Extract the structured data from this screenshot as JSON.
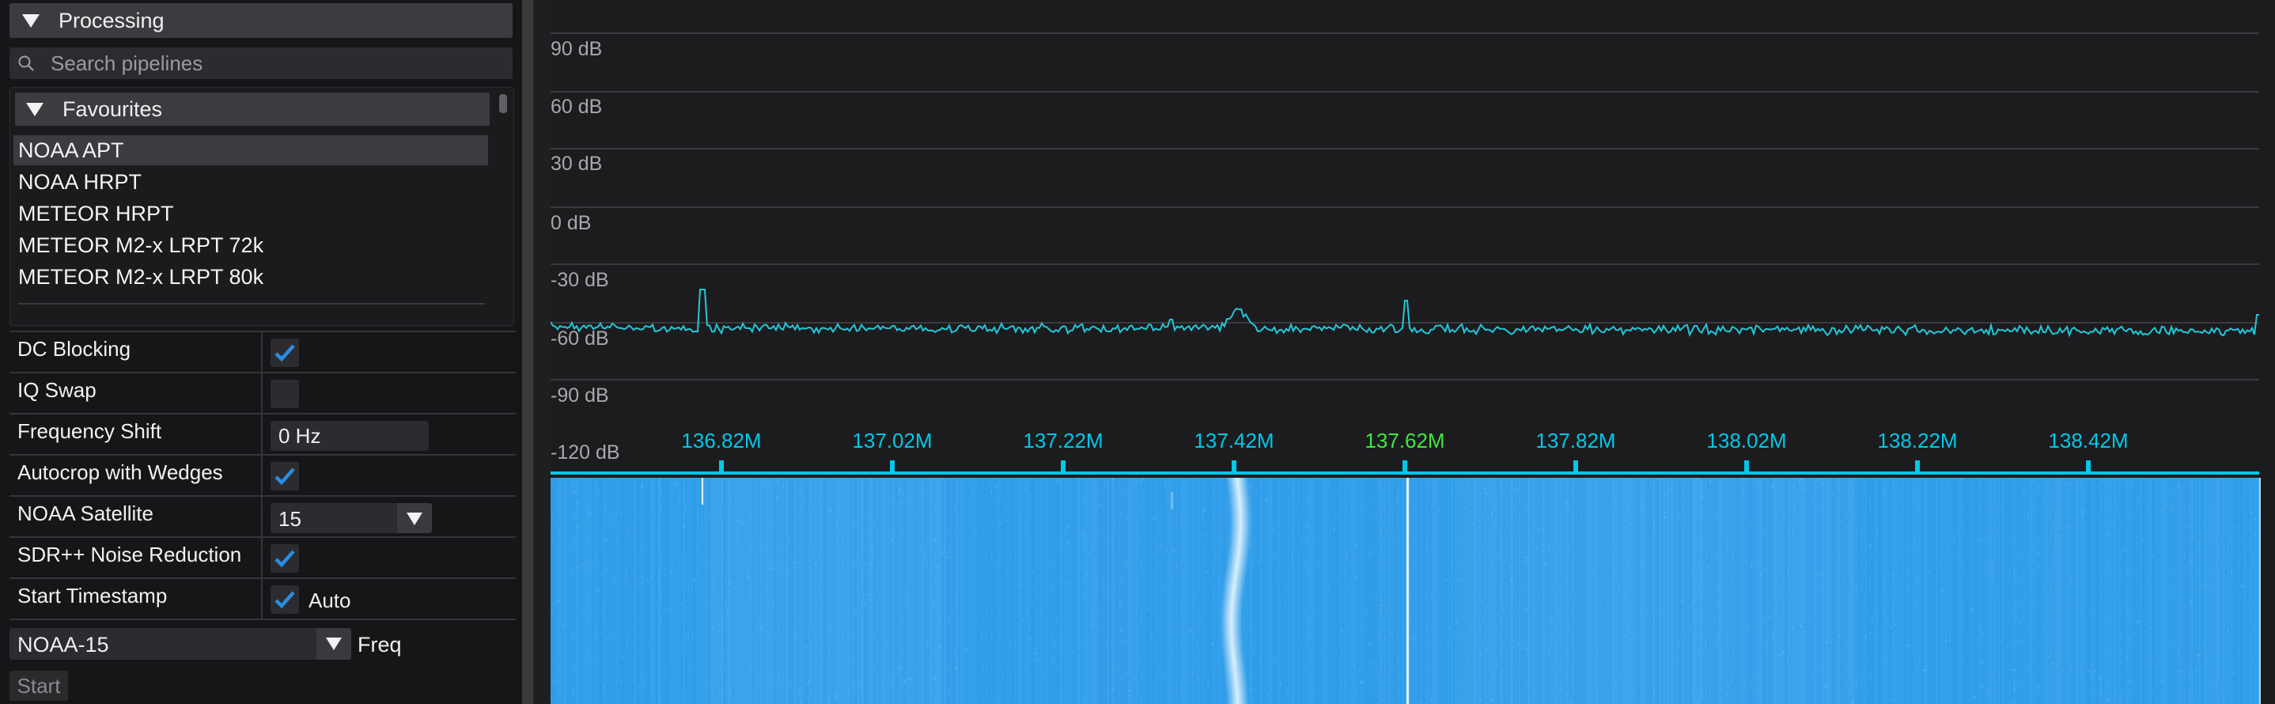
{
  "processing": {
    "header_title": "Processing",
    "search_placeholder": "Search pipelines",
    "favourites_title": "Favourites",
    "pipelines": [
      "NOAA APT",
      "NOAA HRPT",
      "METEOR HRPT",
      "METEOR M2-x LRPT 72k",
      "METEOR M2-x LRPT 80k"
    ],
    "selected_pipeline": "NOAA APT"
  },
  "settings": {
    "dc_blocking": {
      "label": "DC Blocking",
      "checked": true
    },
    "iq_swap": {
      "label": "IQ Swap",
      "checked": false
    },
    "frequency_shift": {
      "label": "Frequency Shift",
      "value": "0 Hz"
    },
    "autocrop": {
      "label": "Autocrop with Wedges",
      "checked": true
    },
    "noaa_satellite": {
      "label": "NOAA Satellite",
      "value": "15"
    },
    "sdrpp_noise": {
      "label": "SDR++ Noise Reduction",
      "checked": true
    },
    "start_timestamp": {
      "label": "Start Timestamp",
      "checked": true,
      "option_label": "Auto"
    }
  },
  "satellite_select": {
    "value": "NOAA-15",
    "freq_label": "Freq"
  },
  "start_button": "Start",
  "spectrum": {
    "db_labels": [
      "90 dB",
      "60 dB",
      "30 dB",
      "0 dB",
      "-30 dB",
      "-60 dB",
      "-90 dB",
      "-120 dB"
    ],
    "freq_labels": [
      "136.82M",
      "137.02M",
      "137.22M",
      "137.42M",
      "137.62M",
      "137.82M",
      "138.02M",
      "138.22M",
      "138.42M"
    ],
    "center_freq": "137.62M",
    "colors": {
      "trace": "#22c8d8",
      "axis": "#00c8e8",
      "center": "#3ee83e",
      "waterfall_base": "#2a9ae8",
      "grid": "#3a3a3e"
    },
    "noise_floor_db": -57
  }
}
